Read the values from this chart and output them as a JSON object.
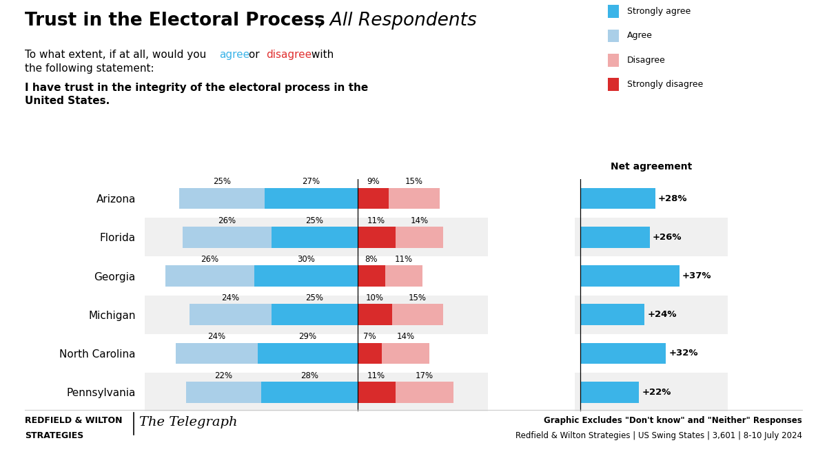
{
  "title_bold": "Trust in the Electoral Process",
  "title_italic": ", All Respondents",
  "states": [
    "Arizona",
    "Florida",
    "Georgia",
    "Michigan",
    "North Carolina",
    "Pennsylvania"
  ],
  "strongly_agree": [
    27,
    25,
    30,
    25,
    29,
    28
  ],
  "agree": [
    25,
    26,
    26,
    24,
    24,
    22
  ],
  "strongly_disagree": [
    9,
    11,
    8,
    10,
    7,
    11
  ],
  "disagree": [
    15,
    14,
    11,
    15,
    14,
    17
  ],
  "net_agreement": [
    28,
    26,
    37,
    24,
    32,
    22
  ],
  "color_strongly_agree": "#3BB4E8",
  "color_agree": "#AACFE8",
  "color_strongly_disagree": "#D92B2B",
  "color_disagree": "#F0AAAA",
  "color_net": "#3BB4E8",
  "bg_color": "#FFFFFF",
  "row_alt_color": "#F0F0F0",
  "footer_bold": "Graphic Excludes \"Don't know\" and \"Neither\" Responses",
  "footer_normal": "Redfield & Wilton Strategies | US Swing States | 3,601 | 8-10 July 2024",
  "legend_items": [
    "Strongly agree",
    "Agree",
    "Disagree",
    "Strongly disagree"
  ],
  "legend_colors": [
    "#3BB4E8",
    "#AACFE8",
    "#F0AAAA",
    "#D92B2B"
  ],
  "agree_color_inline": "#3BB4E8",
  "disagree_color_inline": "#E03030"
}
